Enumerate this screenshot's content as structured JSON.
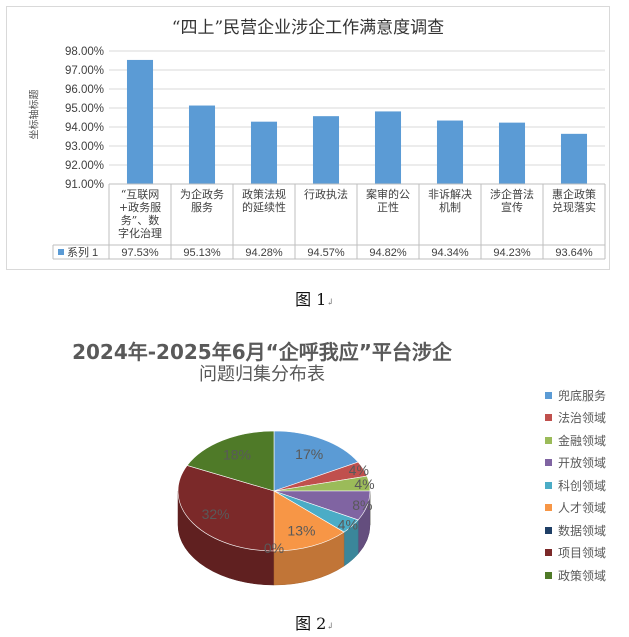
{
  "figure1": {
    "caption": "图 1",
    "caption_mark": "↲",
    "chart_data": {
      "type": "bar",
      "title": "“四上”民营企业涉企工作满意度调查",
      "ylabel": "坐标轴标题",
      "xlabel": "",
      "ylim": [
        91.0,
        98.0
      ],
      "yticks": [
        "91.00%",
        "92.00%",
        "93.00%",
        "94.00%",
        "95.00%",
        "96.00%",
        "97.00%",
        "98.00%"
      ],
      "categories": [
        [
          "“互联网",
          "+政务服",
          "务”、数",
          "字化治理"
        ],
        [
          "为企政务",
          "服务"
        ],
        [
          "政策法规",
          "的延续性"
        ],
        [
          "行政执法"
        ],
        [
          "案审的公",
          "正性"
        ],
        [
          "非诉解决",
          "机制"
        ],
        [
          "涉企普法",
          "宣传"
        ],
        [
          "惠企政策",
          "兑现落实"
        ]
      ],
      "series": [
        {
          "name": "系列 1",
          "values": [
            97.53,
            95.13,
            94.28,
            94.57,
            94.82,
            94.34,
            94.23,
            93.64
          ],
          "labels": [
            "97.53%",
            "95.13%",
            "94.28%",
            "94.57%",
            "94.82%",
            "94.34%",
            "94.23%",
            "93.64%"
          ]
        }
      ],
      "color": "#5b9bd5",
      "grid": true,
      "data_table": true
    }
  },
  "figure2": {
    "caption": "图 2",
    "caption_mark": "↲",
    "chart_data": {
      "type": "pie",
      "title_line1": "2024年-2025年6月“企呼我应”平台涉企",
      "title_line2": "问题归集分布表",
      "style": "3d",
      "legend_position": "right",
      "slices": [
        {
          "name": "兜底服务",
          "value": 17,
          "label": "17%",
          "color": "#5b9bd5"
        },
        {
          "name": "法治领域",
          "value": 4,
          "label": "4%",
          "color": "#c0504d"
        },
        {
          "name": "金融领域",
          "value": 4,
          "label": "4%",
          "color": "#9bbb59"
        },
        {
          "name": "开放领域",
          "value": 8,
          "label": "8%",
          "color": "#8064a2"
        },
        {
          "name": "科创领域",
          "value": 4,
          "label": "4%",
          "color": "#4bacc6"
        },
        {
          "name": "人才领域",
          "value": 13,
          "label": "13%",
          "color": "#f79646"
        },
        {
          "name": "数据领域",
          "value": 0,
          "label": "0%",
          "color": "#1f3f66"
        },
        {
          "name": "项目领域",
          "value": 32,
          "label": "32%",
          "color": "#7b2929"
        },
        {
          "name": "政策领域",
          "value": 18,
          "label": "18%",
          "color": "#4f7a28"
        }
      ]
    }
  }
}
